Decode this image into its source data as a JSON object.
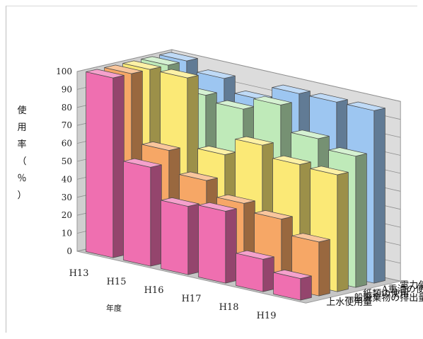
{
  "chart_data": {
    "type": "bar",
    "subtype": "3d-grouped",
    "title": "",
    "xlabel": "年度",
    "ylabel_chars": [
      "使",
      "用",
      "率",
      "（",
      "％",
      "）"
    ],
    "ylim": [
      0,
      100
    ],
    "yticks": [
      "0",
      "10",
      "20",
      "30",
      "40",
      "50",
      "60",
      "70",
      "80",
      "90",
      "100"
    ],
    "categories": [
      "H13",
      "H15",
      "H16",
      "H17",
      "H18",
      "H19"
    ],
    "series": [
      {
        "name": "上水使用量",
        "color": "#ef6fb0",
        "values": [
          100,
          55,
          38,
          40,
          18,
          12
        ]
      },
      {
        "name": "一般廃棄物の排出量",
        "color": "#f6a766",
        "values": [
          100,
          62,
          50,
          42,
          38,
          30
        ]
      },
      {
        "name": "紙類の使用",
        "color": "#fbe976",
        "values": [
          100,
          100,
          62,
          72,
          66,
          65
        ]
      },
      {
        "name": "A重油の使用量",
        "color": "#bfeab9",
        "values": [
          100,
          88,
          85,
          92,
          78,
          73
        ]
      },
      {
        "name": "電力使用量",
        "color": "#9dc6f1",
        "values": [
          100,
          95,
          88,
          96,
          96,
          96
        ]
      }
    ],
    "grid": true,
    "legend": "right-depth-axis"
  }
}
